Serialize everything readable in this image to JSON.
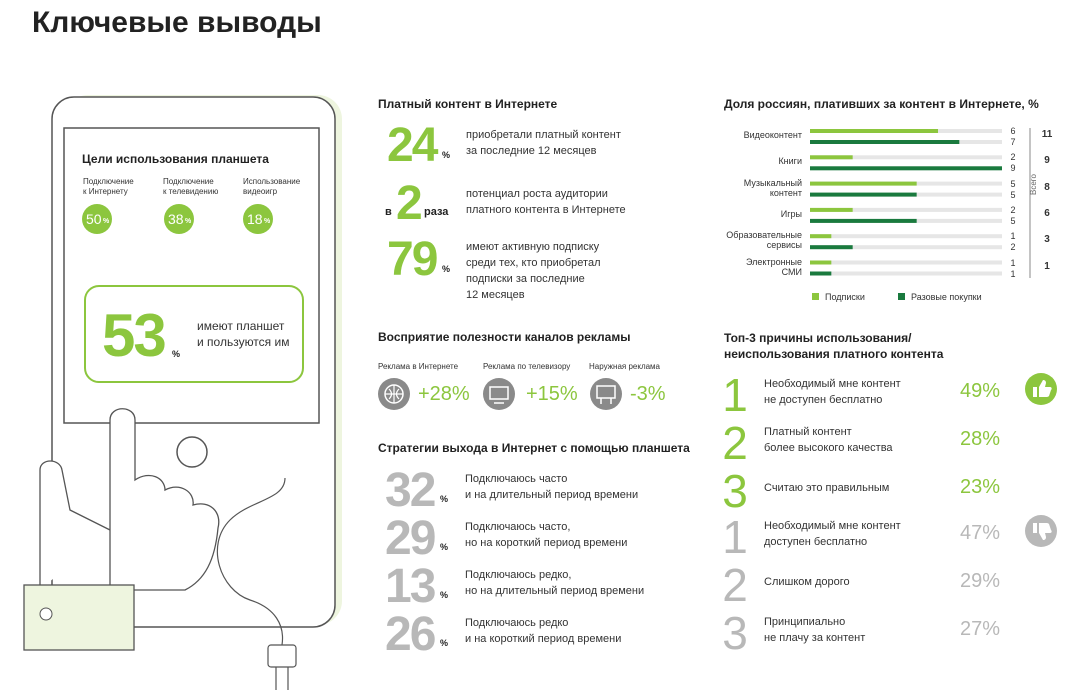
{
  "header": {
    "title": "Ключевые выводы"
  },
  "tablet": {
    "title": "Цели использования планшета",
    "goals": [
      {
        "label": "Подключение\nк Интернету",
        "value": "50",
        "unit": "%"
      },
      {
        "label": "Подключение\nк телевидению",
        "value": "38",
        "unit": "%"
      },
      {
        "label": "Использование\nвидеоигр",
        "value": "18",
        "unit": "%"
      }
    ],
    "main": {
      "value": "53",
      "unit": "%",
      "text": "имеют планшет\nи пользуются им"
    }
  },
  "paid_content": {
    "title": "Платный контент в Интернете",
    "items": [
      {
        "value": "24",
        "unit": "%",
        "text": "приобретали платный контент\nза последние 12 месяцев"
      },
      {
        "prefix": "в",
        "value": "2",
        "unit": "раза",
        "text": "потенциал роста аудитории\nплатного контента в Интернете"
      },
      {
        "value": "79",
        "unit": "%",
        "text": "имеют активную подписку\nсреди тех, кто приобретал\nподписки за последние\n12 месяцев"
      }
    ]
  },
  "ads": {
    "title": "Восприятие полезности каналов рекламы",
    "channels": [
      {
        "label": "Реклама в Интернете",
        "value": "+28%"
      },
      {
        "label": "Реклама по телевизору",
        "value": "+15%"
      },
      {
        "label": "Наружная реклама",
        "value": "-3%"
      }
    ]
  },
  "strategies": {
    "title": "Стратегии выхода в Интернет с помощью планшета",
    "items": [
      {
        "value": "32",
        "unit": "%",
        "text": "Подключаюсь часто\nи на длительный период времени"
      },
      {
        "value": "29",
        "unit": "%",
        "text": "Подключаюсь часто,\nно на короткий период времени"
      },
      {
        "value": "13",
        "unit": "%",
        "text": "Подключаюсь редко,\nно на длительный период времени"
      },
      {
        "value": "26",
        "unit": "%",
        "text": "Подключаюсь редко\nи на короткий период времени"
      }
    ]
  },
  "reasons": {
    "title": "Топ-3 причины использования/\nнеиспользования платного контента",
    "use": [
      {
        "rank": "1",
        "text": "Необходимый мне контент\nне доступен бесплатно",
        "value": "49%"
      },
      {
        "rank": "2",
        "text": "Платный контент\nболее высокого качества",
        "value": "28%"
      },
      {
        "rank": "3",
        "text": "Считаю это правильным",
        "value": "23%"
      }
    ],
    "non_use": [
      {
        "rank": "1",
        "text": "Необходимый мне контент\nдоступен бесплатно",
        "value": "47%"
      },
      {
        "rank": "2",
        "text": "Слишком дорого",
        "value": "29%"
      },
      {
        "rank": "3",
        "text": "Принципиально\nне плачу за контент",
        "value": "27%"
      }
    ]
  },
  "chart_data": {
    "type": "bar",
    "orientation": "horizontal",
    "title": "Доля россиян, плативших за контент в Интернете, %",
    "categories": [
      "Видеоконтент",
      "Книги",
      "Музыкальный\nконтент",
      "Игры",
      "Образовательные\nсервисы",
      "Электронные\nСМИ"
    ],
    "series": [
      {
        "name": "Подписки",
        "color": "#8cc63e",
        "values": [
          6,
          2,
          5,
          2,
          1,
          1
        ]
      },
      {
        "name": "Разовые покупки",
        "color": "#1a7a3e",
        "values": [
          7,
          9,
          5,
          5,
          2,
          1
        ]
      }
    ],
    "totals_label": "Всего",
    "totals": [
      11,
      9,
      8,
      6,
      3,
      1
    ],
    "xlim": [
      0,
      9
    ]
  }
}
